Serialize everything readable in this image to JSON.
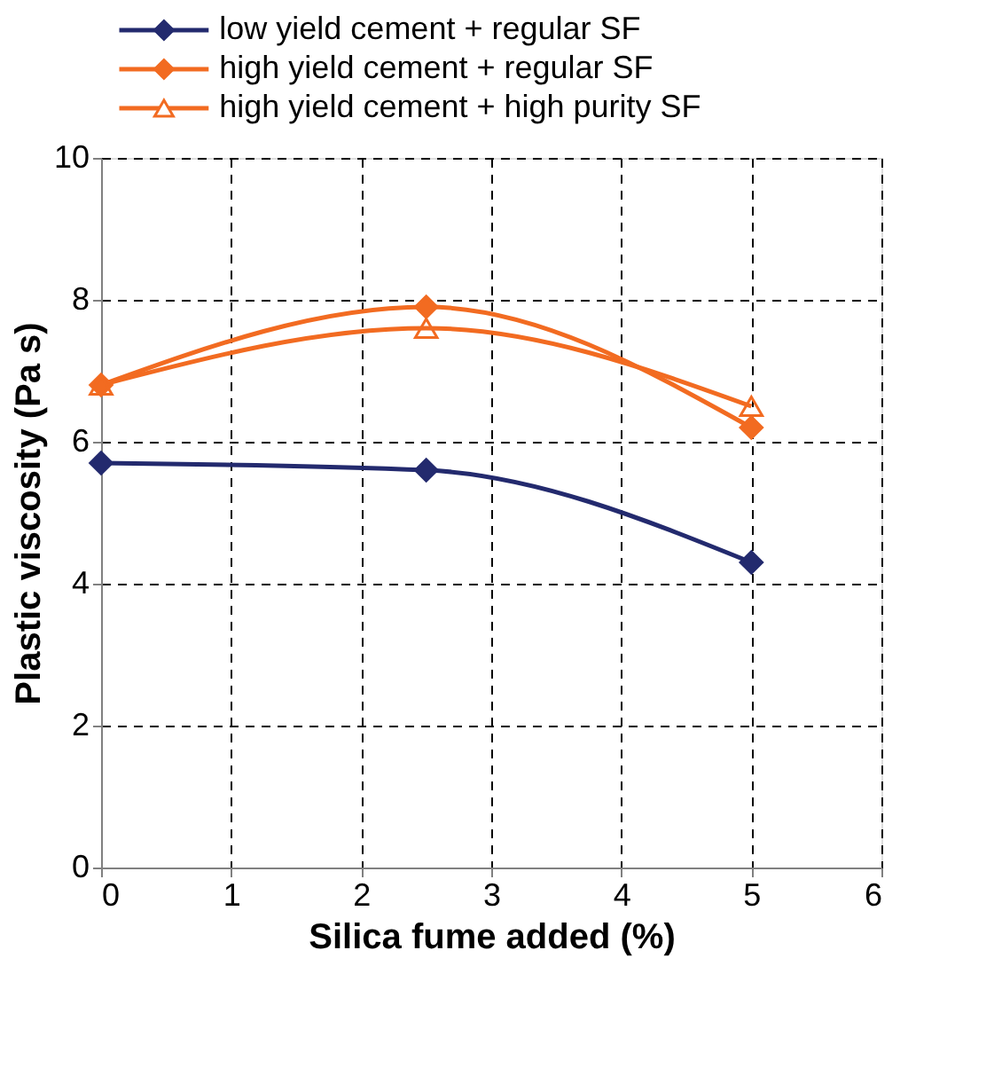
{
  "chart_data": {
    "type": "line",
    "xlabel": "Silica fume added (%)",
    "ylabel": "Plastic viscosity (Pa s)",
    "x": [
      0,
      2.5,
      5
    ],
    "xlim": [
      0,
      6
    ],
    "xticks": [
      0,
      1,
      2,
      3,
      4,
      5,
      6
    ],
    "ylim": [
      0,
      10
    ],
    "yticks": [
      0,
      2,
      4,
      6,
      8,
      10
    ],
    "grid": true,
    "legend": "top",
    "series": [
      {
        "name": "low yield cement + regular SF",
        "color": "#232a6e",
        "marker": "diamond",
        "values": [
          5.7,
          5.6,
          4.3
        ]
      },
      {
        "name": "high yield cement + regular SF",
        "color": "#f26b21",
        "marker": "diamond",
        "values": [
          6.8,
          7.9,
          6.2
        ]
      },
      {
        "name": "high yield cement + high purity SF",
        "color": "#f26b21",
        "marker": "triangle",
        "values": [
          6.8,
          7.6,
          6.5
        ]
      }
    ]
  }
}
